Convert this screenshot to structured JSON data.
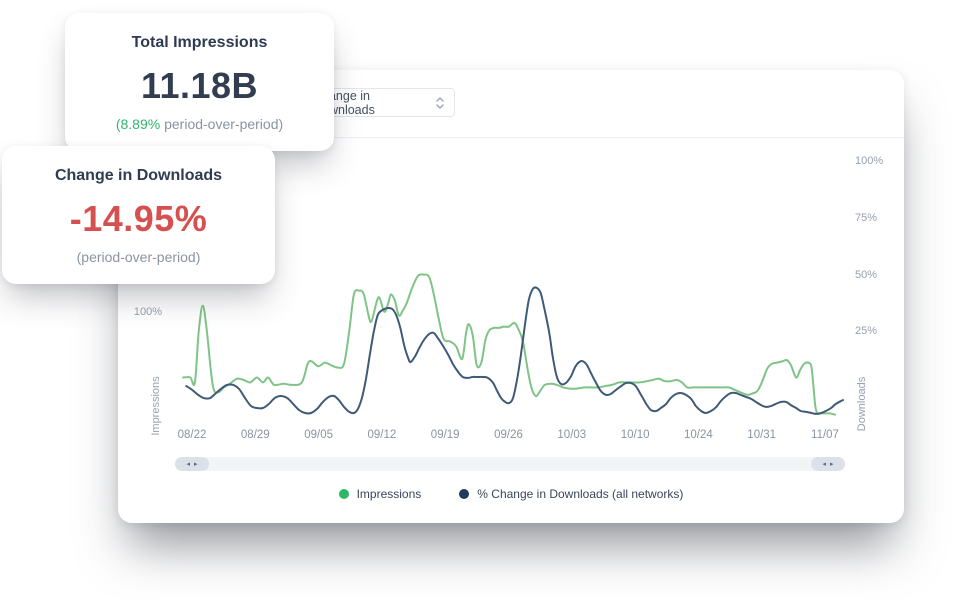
{
  "colors": {
    "accent_green": "#2eb865",
    "line_green": "#7fc487",
    "accent_navy": "#1e3a5c",
    "line_navy": "#3e5a77",
    "negative_red": "#d5504e"
  },
  "cards": [
    {
      "title": "Total Impressions",
      "value": "11.18B",
      "sub_highlight": "(8.89%",
      "sub_rest": " period-over-period)"
    },
    {
      "title": "Change in Downloads",
      "value": "-14.95%",
      "sub": "(period-over-period)"
    }
  ],
  "panel": {
    "dropdown": {
      "value": "Change in Downloads"
    },
    "scrollbar": {
      "left_arrow": "◂",
      "right_arrow": "▸"
    },
    "chart_data": {
      "type": "line",
      "grid": false,
      "x_axis": {
        "tick_labels": [
          "08/22",
          "08/29",
          "09/05",
          "09/12",
          "09/19",
          "09/26",
          "10/03",
          "10/10",
          "10/24",
          "10/31",
          "11/07"
        ],
        "range": [
          "08/22",
          "11/07"
        ]
      },
      "left_axis": {
        "label": "Impressions",
        "ticks": [
          "100%"
        ]
      },
      "right_axis": {
        "label": "Downloads",
        "ticks": [
          "100%",
          "75%",
          "50%",
          "25%"
        ]
      },
      "legend": [
        {
          "label": "Impressions",
          "color": "#2eb865"
        },
        {
          "label": "% Change in Downloads (all networks)",
          "color": "#1e3a5c"
        }
      ],
      "series": [
        {
          "name": "Impressions",
          "axis": "left",
          "color": "#7fc487",
          "unit": "%",
          "points": [
            [
              0,
              48
            ],
            [
              1.1,
              48
            ],
            [
              1.8,
              44
            ],
            [
              2.4,
              86
            ],
            [
              3,
              106
            ],
            [
              3.6,
              86
            ],
            [
              4.5,
              42
            ],
            [
              5.3,
              36
            ],
            [
              6.2,
              40
            ],
            [
              7.1,
              43
            ],
            [
              8.2,
              47
            ],
            [
              9.2,
              46
            ],
            [
              10.2,
              44
            ],
            [
              11.2,
              48
            ],
            [
              12.1,
              44
            ],
            [
              12.9,
              48
            ],
            [
              13.8,
              42
            ],
            [
              15.2,
              43
            ],
            [
              16.5,
              42
            ],
            [
              18,
              44
            ],
            [
              18.9,
              59
            ],
            [
              19.5,
              61
            ],
            [
              20.5,
              57
            ],
            [
              21.5,
              60
            ],
            [
              22.4,
              58
            ],
            [
              23.5,
              56
            ],
            [
              24.4,
              59
            ],
            [
              25.2,
              86
            ],
            [
              25.9,
              115
            ],
            [
              26.7,
              118
            ],
            [
              27.4,
              115
            ],
            [
              28.2,
              96
            ],
            [
              28.6,
              94
            ],
            [
              29.4,
              110
            ],
            [
              29.8,
              112
            ],
            [
              30.5,
              101
            ],
            [
              31.1,
              108
            ],
            [
              31.5,
              115
            ],
            [
              32.1,
              110
            ],
            [
              32.7,
              98
            ],
            [
              33.3,
              102
            ],
            [
              33.9,
              108
            ],
            [
              34.7,
              120
            ],
            [
              35.6,
              130
            ],
            [
              36.5,
              131
            ],
            [
              37.3,
              129
            ],
            [
              38,
              115
            ],
            [
              38.8,
              94
            ],
            [
              39.5,
              79
            ],
            [
              40.5,
              77
            ],
            [
              41.4,
              73
            ],
            [
              42.3,
              63
            ],
            [
              42.9,
              84
            ],
            [
              43.3,
              91
            ],
            [
              43.9,
              82
            ],
            [
              44.5,
              58
            ],
            [
              45.2,
              60
            ],
            [
              45.8,
              78
            ],
            [
              46.4,
              86
            ],
            [
              47.1,
              88
            ],
            [
              47.9,
              88
            ],
            [
              48.6,
              89
            ],
            [
              49.4,
              89
            ],
            [
              50.2,
              92
            ],
            [
              50.8,
              87
            ],
            [
              51.5,
              77
            ],
            [
              52.3,
              52
            ],
            [
              52.9,
              38
            ],
            [
              53.5,
              33
            ],
            [
              54.1,
              37
            ],
            [
              54.8,
              42
            ],
            [
              55.8,
              43
            ],
            [
              56.7,
              42
            ],
            [
              57.6,
              40
            ],
            [
              58.6,
              39
            ],
            [
              59.7,
              39
            ],
            [
              60.8,
              40
            ],
            [
              61.8,
              40
            ],
            [
              62.9,
              40
            ],
            [
              63.9,
              41
            ],
            [
              65,
              42
            ],
            [
              66.1,
              44
            ],
            [
              67.1,
              44
            ],
            [
              68.2,
              44
            ],
            [
              69.2,
              44
            ],
            [
              70.3,
              45
            ],
            [
              71.2,
              46
            ],
            [
              72.1,
              47
            ],
            [
              73,
              45
            ],
            [
              73.9,
              45
            ],
            [
              74.8,
              46
            ],
            [
              75.6,
              44
            ],
            [
              76.4,
              40
            ],
            [
              77.3,
              40
            ],
            [
              78.2,
              40
            ],
            [
              79.1,
              40
            ],
            [
              80,
              40
            ],
            [
              80.9,
              40
            ],
            [
              81.8,
              40
            ],
            [
              82.7,
              40
            ],
            [
              83.6,
              38
            ],
            [
              84.5,
              36
            ],
            [
              85.5,
              34
            ],
            [
              86.2,
              35
            ],
            [
              87,
              37
            ],
            [
              87.7,
              44
            ],
            [
              88.5,
              55
            ],
            [
              89.2,
              59
            ],
            [
              90,
              60
            ],
            [
              90.8,
              61
            ],
            [
              91.5,
              62
            ],
            [
              92.1,
              58
            ],
            [
              92.6,
              51
            ],
            [
              93,
              48
            ],
            [
              93.5,
              54
            ],
            [
              94.1,
              59
            ],
            [
              94.7,
              60
            ],
            [
              95.2,
              57
            ],
            [
              95.5,
              42
            ],
            [
              95.8,
              25
            ],
            [
              96.1,
              19
            ],
            [
              96.5,
              19
            ],
            [
              97.3,
              19
            ],
            [
              98,
              19
            ],
            [
              98.8,
              18
            ]
          ]
        },
        {
          "name": "% Change in Downloads (all networks)",
          "axis": "right",
          "color": "#3e5a77",
          "unit": "%",
          "points": [
            [
              0.5,
              1.3
            ],
            [
              1.4,
              -0.4
            ],
            [
              2.3,
              -2.6
            ],
            [
              3.2,
              -4
            ],
            [
              4.1,
              -4
            ],
            [
              5,
              -1.8
            ],
            [
              5.9,
              0.4
            ],
            [
              6.7,
              1.8
            ],
            [
              7.6,
              1.8
            ],
            [
              8.5,
              0
            ],
            [
              9.4,
              -4
            ],
            [
              10.3,
              -7.5
            ],
            [
              11.2,
              -8.4
            ],
            [
              12.1,
              -8.4
            ],
            [
              13,
              -6.6
            ],
            [
              13.9,
              -4
            ],
            [
              14.8,
              -3.1
            ],
            [
              15.8,
              -4
            ],
            [
              16.7,
              -6.6
            ],
            [
              17.6,
              -9.3
            ],
            [
              18.5,
              -10.6
            ],
            [
              19.4,
              -10.6
            ],
            [
              20.3,
              -8.8
            ],
            [
              21.2,
              -5.7
            ],
            [
              22.1,
              -3.5
            ],
            [
              22.9,
              -3.1
            ],
            [
              23.6,
              -4.9
            ],
            [
              24.4,
              -7.9
            ],
            [
              25.2,
              -10.1
            ],
            [
              25.9,
              -10.6
            ],
            [
              26.5,
              -8.8
            ],
            [
              27.1,
              -4
            ],
            [
              27.7,
              4
            ],
            [
              28.3,
              15
            ],
            [
              28.9,
              25.1
            ],
            [
              29.5,
              32.6
            ],
            [
              30.2,
              34.8
            ],
            [
              30.9,
              35.7
            ],
            [
              31.7,
              35.3
            ],
            [
              32.3,
              32.6
            ],
            [
              32.9,
              27.3
            ],
            [
              33.5,
              19.4
            ],
            [
              34.1,
              13.7
            ],
            [
              34.5,
              11.9
            ],
            [
              35.2,
              14.6
            ],
            [
              35.8,
              18.1
            ],
            [
              36.5,
              21.6
            ],
            [
              37.3,
              24.3
            ],
            [
              38,
              24.7
            ],
            [
              38.6,
              22.5
            ],
            [
              39.4,
              19
            ],
            [
              40.2,
              15
            ],
            [
              40.9,
              11
            ],
            [
              41.7,
              7.5
            ],
            [
              42.4,
              5.3
            ],
            [
              43.2,
              4.9
            ],
            [
              43.9,
              5.3
            ],
            [
              44.7,
              5.3
            ],
            [
              45.5,
              5.3
            ],
            [
              46.2,
              4.9
            ],
            [
              47,
              2.6
            ],
            [
              47.6,
              -0.9
            ],
            [
              48.2,
              -4
            ],
            [
              48.8,
              -5.7
            ],
            [
              49.4,
              -6.2
            ],
            [
              50,
              -4
            ],
            [
              50.6,
              4
            ],
            [
              51.2,
              15
            ],
            [
              51.8,
              28.2
            ],
            [
              52.4,
              39.3
            ],
            [
              53,
              44.1
            ],
            [
              53.6,
              44.6
            ],
            [
              54.2,
              42.3
            ],
            [
              54.8,
              34.8
            ],
            [
              55.5,
              24.7
            ],
            [
              56.1,
              12.8
            ],
            [
              56.7,
              4.9
            ],
            [
              57.3,
              2.2
            ],
            [
              58,
              2.6
            ],
            [
              58.8,
              5.7
            ],
            [
              59.5,
              10.1
            ],
            [
              60.3,
              12.3
            ],
            [
              61.1,
              11
            ],
            [
              61.8,
              7.1
            ],
            [
              62.6,
              2.6
            ],
            [
              63.3,
              -0.9
            ],
            [
              64.1,
              -2.6
            ],
            [
              64.8,
              -2.2
            ],
            [
              65.6,
              -0.4
            ],
            [
              66.4,
              1.3
            ],
            [
              67.1,
              2.6
            ],
            [
              67.9,
              2.6
            ],
            [
              68.6,
              1.3
            ],
            [
              69.4,
              -2.6
            ],
            [
              70.2,
              -6.6
            ],
            [
              70.9,
              -9.3
            ],
            [
              71.7,
              -9.7
            ],
            [
              72.4,
              -8.4
            ],
            [
              73.2,
              -6.6
            ],
            [
              73.9,
              -4
            ],
            [
              74.7,
              -2.2
            ],
            [
              75.5,
              -1.8
            ],
            [
              76.2,
              -2.6
            ],
            [
              77,
              -4.4
            ],
            [
              77.7,
              -7.5
            ],
            [
              78.5,
              -9.7
            ],
            [
              79.2,
              -10.6
            ],
            [
              80,
              -9.7
            ],
            [
              80.8,
              -7.9
            ],
            [
              81.5,
              -5.3
            ],
            [
              82.3,
              -3.1
            ],
            [
              83,
              -1.8
            ],
            [
              83.8,
              -1.8
            ],
            [
              84.5,
              -2.6
            ],
            [
              85.3,
              -3.5
            ],
            [
              86.1,
              -4.4
            ],
            [
              86.8,
              -5.7
            ],
            [
              87.6,
              -7.1
            ],
            [
              88.3,
              -7.9
            ],
            [
              89.1,
              -7.5
            ],
            [
              89.8,
              -6.6
            ],
            [
              90.6,
              -5.7
            ],
            [
              91.4,
              -5.7
            ],
            [
              92.1,
              -7.1
            ],
            [
              92.9,
              -8.4
            ],
            [
              93.6,
              -9.7
            ],
            [
              94.4,
              -10.1
            ],
            [
              95.2,
              -10.6
            ],
            [
              95.9,
              -11
            ],
            [
              96.7,
              -10.6
            ],
            [
              97.4,
              -9.7
            ],
            [
              98.2,
              -8.4
            ],
            [
              98.9,
              -6.6
            ],
            [
              99.7,
              -5.3
            ],
            [
              100,
              -4.9
            ]
          ]
        }
      ]
    }
  }
}
